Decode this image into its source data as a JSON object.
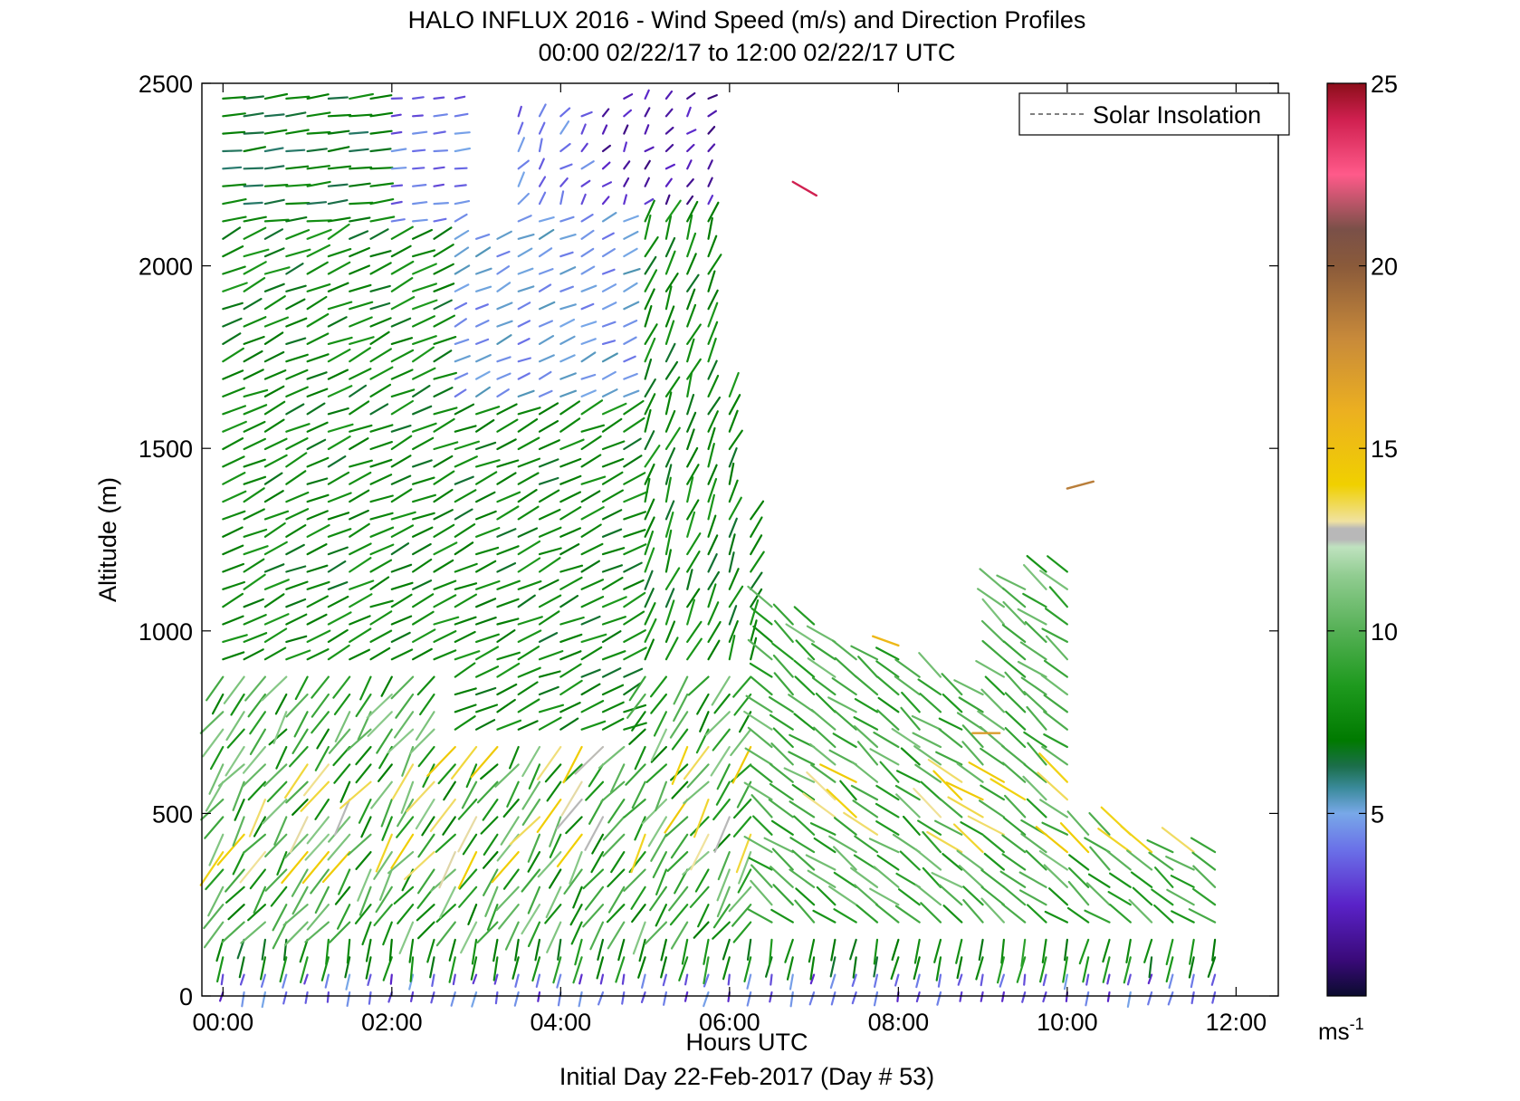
{
  "chart_data": {
    "type": "wind_barbs",
    "title": "HALO INFLUX 2016 - Wind Speed (m/s) and Direction Profiles",
    "subtitle": "00:00 02/22/17 to 12:00 02/22/17  UTC",
    "xlabel": "Hours UTC",
    "xlabel2": "Initial Day 22-Feb-2017 (Day # 53)",
    "ylabel": "Altitude (m)",
    "xlim": [
      -0.25,
      12.5
    ],
    "ylim": [
      0,
      2500
    ],
    "x_ticks": [
      0,
      2,
      4,
      6,
      8,
      10,
      12
    ],
    "x_tick_labels": [
      "00:00",
      "02:00",
      "04:00",
      "06:00",
      "08:00",
      "10:00",
      "12:00"
    ],
    "y_ticks": [
      0,
      500,
      1000,
      1500,
      2000,
      2500
    ],
    "y_tick_labels": [
      "0",
      "500",
      "1000",
      "1500",
      "2000",
      "2500"
    ],
    "legend": {
      "entries": [
        "Solar Insolation"
      ],
      "placement": "top-right",
      "line_style": "dashed",
      "line_color": "#000000"
    },
    "colorbar": {
      "unit": "ms",
      "unit_exponent": "-1",
      "range": [
        0,
        25
      ],
      "ticks": [
        5,
        10,
        15,
        20,
        25
      ],
      "tick_labels": [
        "5",
        "10",
        "15",
        "20",
        "25"
      ],
      "stops": [
        {
          "v": 0,
          "color": "#0b0b2e"
        },
        {
          "v": 1,
          "color": "#3a0a7a"
        },
        {
          "v": 2.5,
          "color": "#5a22c8"
        },
        {
          "v": 4,
          "color": "#6a70e8"
        },
        {
          "v": 5,
          "color": "#78a8e8"
        },
        {
          "v": 5.7,
          "color": "#3a8a9a"
        },
        {
          "v": 6.3,
          "color": "#1b6e4a"
        },
        {
          "v": 7,
          "color": "#007a00"
        },
        {
          "v": 8.5,
          "color": "#1e9a1e"
        },
        {
          "v": 10,
          "color": "#55b055"
        },
        {
          "v": 11.5,
          "color": "#90cc90"
        },
        {
          "v": 12.3,
          "color": "#bfe2bf"
        },
        {
          "v": 12.5,
          "color": "#b8b8b8"
        },
        {
          "v": 12.8,
          "color": "#b8b8b8"
        },
        {
          "v": 13,
          "color": "#f0e2a0"
        },
        {
          "v": 14,
          "color": "#f0d000"
        },
        {
          "v": 16,
          "color": "#ecb020"
        },
        {
          "v": 18,
          "color": "#c88a3a"
        },
        {
          "v": 20,
          "color": "#8a5a3a"
        },
        {
          "v": 21,
          "color": "#7a5048"
        },
        {
          "v": 22.5,
          "color": "#ff5a8a"
        },
        {
          "v": 24,
          "color": "#d02050"
        },
        {
          "v": 25,
          "color": "#8c0e1a"
        }
      ]
    },
    "profiles_time_hours": [
      0.0,
      0.25,
      0.5,
      0.75,
      1.0,
      1.25,
      1.5,
      1.75,
      2.0,
      2.25,
      2.5,
      2.75,
      3.0,
      3.25,
      3.5,
      3.75,
      4.0,
      4.25,
      4.5,
      4.75,
      5.0,
      5.25,
      5.5,
      5.75,
      6.0,
      6.25,
      6.5,
      6.75,
      7.0,
      7.25,
      7.5,
      7.75,
      8.0,
      8.25,
      8.5,
      8.75,
      9.0,
      9.25,
      9.5,
      9.75,
      10.0,
      10.25,
      10.5,
      10.75,
      11.0,
      11.25,
      11.5,
      11.75
    ],
    "profile_max_altitude_m": [
      2500,
      2500,
      2500,
      2500,
      2500,
      2500,
      2500,
      2500,
      2500,
      2500,
      2500,
      2500,
      2100,
      2100,
      2450,
      2450,
      2450,
      2450,
      2450,
      2500,
      2500,
      2500,
      2500,
      2480,
      1650,
      1330,
      1100,
      1050,
      1050,
      1000,
      950,
      950,
      950,
      900,
      900,
      850,
      850,
      1150,
      1150,
      1200,
      1200,
      480,
      480,
      460,
      440,
      430,
      420,
      410
    ],
    "wind_speed_regimes": [
      {
        "altitude_range_m": [
          0,
          150
        ],
        "speed_ms": 3,
        "direction": "northerly"
      },
      {
        "altitude_range_m": [
          150,
          900
        ],
        "speed_ms": 9,
        "direction": "north-easterly"
      },
      {
        "altitude_range_m": [
          400,
          700
        ],
        "speed_ms": 14,
        "direction": "north-easterly"
      },
      {
        "altitude_range_m": [
          900,
          2100
        ],
        "speed_ms": 7.5,
        "direction": "south-westerly"
      },
      {
        "altitude_range_m": [
          2100,
          2500
        ],
        "speed_ms": 4,
        "direction": "westerly"
      }
    ]
  }
}
